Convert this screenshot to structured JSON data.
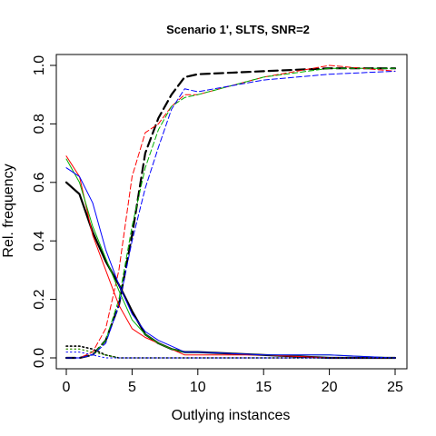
{
  "chart_data": {
    "type": "line",
    "title": "Scenario 1', SLTS, SNR=2",
    "xlabel": "Outlying instances",
    "ylabel": "Rel. frequency",
    "xlim": [
      0,
      25
    ],
    "ylim": [
      0,
      1
    ],
    "xticks": [
      0,
      5,
      10,
      15,
      20,
      25
    ],
    "yticks": [
      0.0,
      0.2,
      0.4,
      0.6,
      0.8,
      1.0
    ],
    "ytick_labels": [
      "0.0",
      "0.2",
      "0.4",
      "0.6",
      "0.8",
      "1.0"
    ],
    "x": [
      0,
      1,
      2,
      3,
      4,
      5,
      6,
      7,
      8,
      9,
      10,
      15,
      20,
      25
    ],
    "grid": false,
    "series": [
      {
        "color": "#000000",
        "style": "dashed",
        "width": 2.2,
        "values": [
          0.0,
          0.0,
          0.01,
          0.06,
          0.18,
          0.42,
          0.7,
          0.82,
          0.9,
          0.96,
          0.97,
          0.98,
          0.99,
          0.99
        ]
      },
      {
        "color": "#ff0000",
        "style": "dashed",
        "width": 1,
        "values": [
          0.0,
          0.0,
          0.02,
          0.1,
          0.3,
          0.62,
          0.77,
          0.8,
          0.86,
          0.9,
          0.9,
          0.96,
          1.0,
          0.98
        ]
      },
      {
        "color": "#00b000",
        "style": "dashed",
        "width": 1,
        "values": [
          0.0,
          0.0,
          0.01,
          0.06,
          0.2,
          0.45,
          0.65,
          0.78,
          0.86,
          0.89,
          0.9,
          0.96,
          0.99,
          0.99
        ]
      },
      {
        "color": "#0000ff",
        "style": "dashed",
        "width": 1,
        "values": [
          0.0,
          0.0,
          0.01,
          0.05,
          0.18,
          0.4,
          0.58,
          0.72,
          0.85,
          0.92,
          0.91,
          0.95,
          0.97,
          0.98
        ]
      },
      {
        "color": "#000000",
        "style": "solid",
        "width": 2.2,
        "values": [
          0.6,
          0.56,
          0.43,
          0.33,
          0.25,
          0.16,
          0.08,
          0.05,
          0.03,
          0.02,
          0.02,
          0.01,
          0.0,
          0.0
        ]
      },
      {
        "color": "#ff0000",
        "style": "solid",
        "width": 1,
        "values": [
          0.69,
          0.62,
          0.42,
          0.3,
          0.18,
          0.1,
          0.07,
          0.05,
          0.03,
          0.01,
          0.01,
          0.01,
          0.0,
          0.0
        ]
      },
      {
        "color": "#00b000",
        "style": "solid",
        "width": 1,
        "values": [
          0.68,
          0.6,
          0.45,
          0.34,
          0.23,
          0.13,
          0.08,
          0.05,
          0.03,
          0.02,
          0.02,
          0.01,
          0.01,
          0.0
        ]
      },
      {
        "color": "#0000ff",
        "style": "solid",
        "width": 1,
        "values": [
          0.65,
          0.62,
          0.53,
          0.37,
          0.25,
          0.15,
          0.09,
          0.06,
          0.04,
          0.02,
          0.02,
          0.01,
          0.01,
          0.0
        ]
      },
      {
        "color": "#000000",
        "style": "dotted",
        "width": 1.6,
        "values": [
          0.04,
          0.04,
          0.03,
          0.01,
          0.0,
          0.0,
          0.0,
          0.0,
          0.0,
          0.0,
          0.0,
          0.0,
          0.0,
          0.0
        ]
      },
      {
        "color": "#ff0000",
        "style": "dotted",
        "width": 1,
        "values": [
          0.03,
          0.03,
          0.02,
          0.01,
          0.0,
          0.0,
          0.0,
          0.0,
          0.0,
          0.0,
          0.0,
          0.0,
          0.0,
          0.0
        ]
      },
      {
        "color": "#00b000",
        "style": "dotted",
        "width": 1,
        "values": [
          0.03,
          0.03,
          0.02,
          0.01,
          0.0,
          0.0,
          0.0,
          0.0,
          0.0,
          0.0,
          0.0,
          0.0,
          0.0,
          0.0
        ]
      },
      {
        "color": "#0000ff",
        "style": "dotted",
        "width": 1,
        "values": [
          0.02,
          0.02,
          0.01,
          0.0,
          0.0,
          0.0,
          0.0,
          0.0,
          0.0,
          0.0,
          0.0,
          0.0,
          0.0,
          0.0
        ]
      }
    ]
  }
}
